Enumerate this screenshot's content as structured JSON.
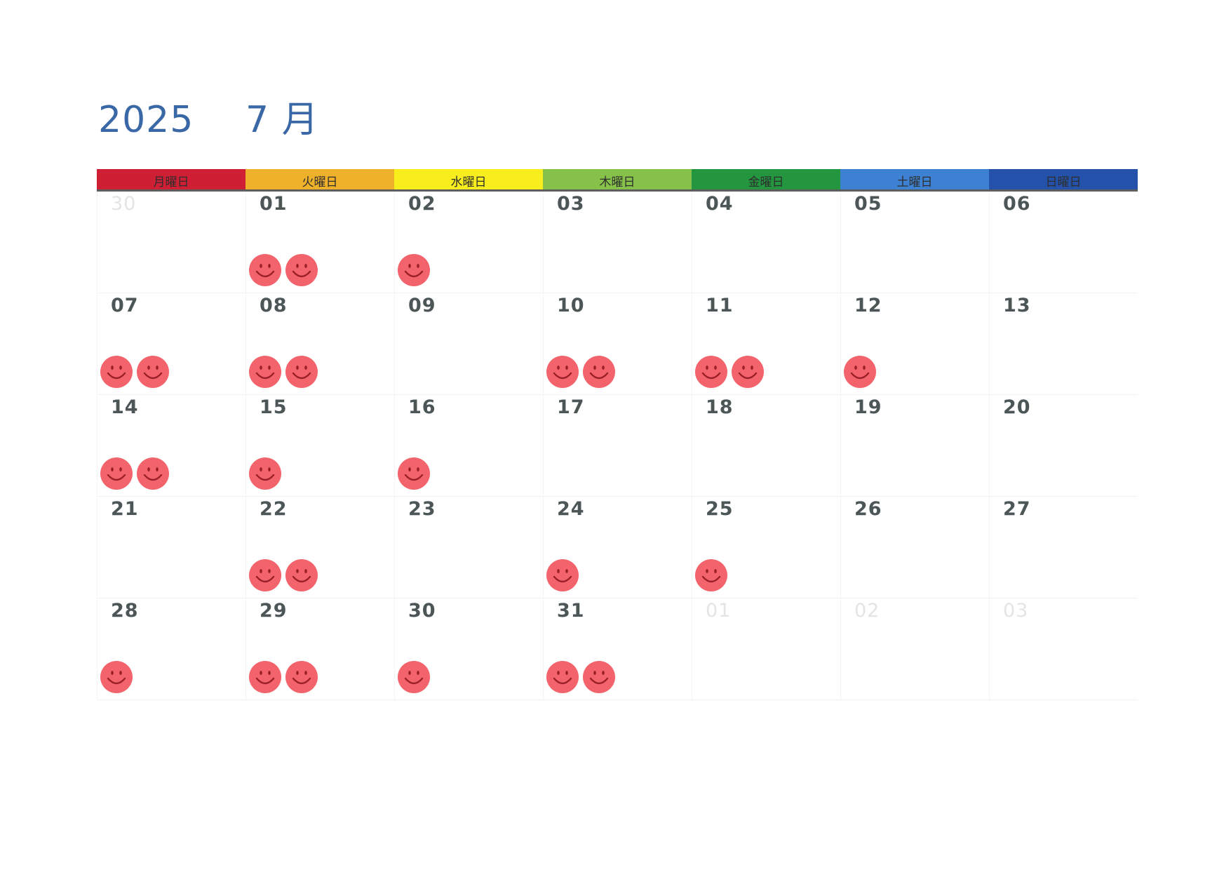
{
  "title": {
    "year": "2025",
    "month": "7 月"
  },
  "colors": {
    "title": "#3a67a5",
    "date_text": "#4d5656",
    "sticker": "#f2636c",
    "sticker_face": "#9a1f28",
    "weekday_bands": [
      "#cf1f35",
      "#efb12a",
      "#f9ee1d",
      "#86c24a",
      "#23963f",
      "#3d82d2",
      "#2452aa"
    ]
  },
  "weekdays": [
    "月曜日",
    "火曜日",
    "水曜日",
    "木曜日",
    "金曜日",
    "土曜日",
    "日曜日"
  ],
  "sticker_icon": "smiley-face-icon",
  "weeks": [
    [
      {
        "date": "30",
        "muted": true,
        "stickers": 0
      },
      {
        "date": "01",
        "stickers": 2
      },
      {
        "date": "02",
        "stickers": 1
      },
      {
        "date": "03",
        "stickers": 0
      },
      {
        "date": "04",
        "stickers": 0
      },
      {
        "date": "05",
        "stickers": 0
      },
      {
        "date": "06",
        "stickers": 0
      }
    ],
    [
      {
        "date": "07",
        "stickers": 2
      },
      {
        "date": "08",
        "stickers": 2
      },
      {
        "date": "09",
        "stickers": 0
      },
      {
        "date": "10",
        "stickers": 2
      },
      {
        "date": "11",
        "stickers": 2
      },
      {
        "date": "12",
        "stickers": 1
      },
      {
        "date": "13",
        "stickers": 0
      }
    ],
    [
      {
        "date": "14",
        "stickers": 2
      },
      {
        "date": "15",
        "stickers": 1
      },
      {
        "date": "16",
        "stickers": 1
      },
      {
        "date": "17",
        "stickers": 0
      },
      {
        "date": "18",
        "stickers": 0
      },
      {
        "date": "19",
        "stickers": 0
      },
      {
        "date": "20",
        "stickers": 0
      }
    ],
    [
      {
        "date": "21",
        "stickers": 0
      },
      {
        "date": "22",
        "stickers": 2
      },
      {
        "date": "23",
        "stickers": 0
      },
      {
        "date": "24",
        "stickers": 1
      },
      {
        "date": "25",
        "stickers": 1
      },
      {
        "date": "26",
        "stickers": 0
      },
      {
        "date": "27",
        "stickers": 0
      }
    ],
    [
      {
        "date": "28",
        "stickers": 1
      },
      {
        "date": "29",
        "stickers": 2
      },
      {
        "date": "30",
        "stickers": 1
      },
      {
        "date": "31",
        "stickers": 2
      },
      {
        "date": "01",
        "muted": true,
        "stickers": 0
      },
      {
        "date": "02",
        "muted": true,
        "stickers": 0
      },
      {
        "date": "03",
        "muted": true,
        "stickers": 0
      }
    ]
  ]
}
